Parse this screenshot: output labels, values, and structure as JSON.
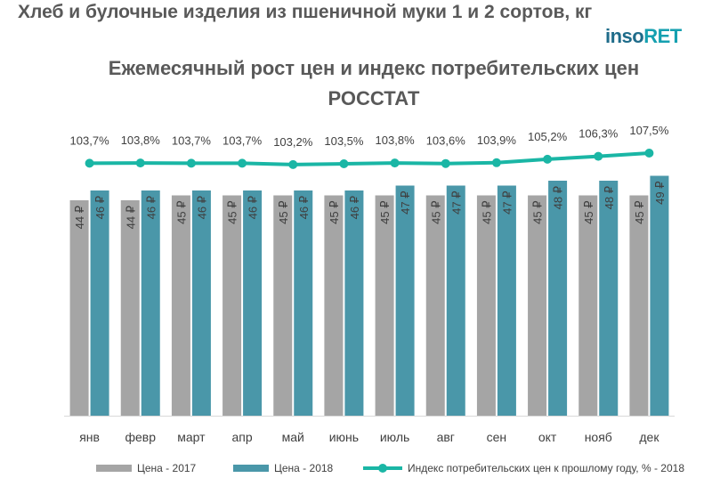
{
  "page": {
    "title": "Хлеб и булочные изделия из пшеничной муки 1 и 2 сортов, кг",
    "logo_part1": "inso",
    "logo_part2": "RET",
    "subtitle_line1": "Ежемесячный рост цен и индекс потребительских цен",
    "subtitle_line2": "РОССТАТ"
  },
  "colors": {
    "series_2017": "#a5a5a5",
    "series_2018": "#4a97a9",
    "index_line": "#1ab6a5",
    "text": "#595959"
  },
  "chart_data": {
    "type": "bar",
    "categories": [
      "янв",
      "февр",
      "март",
      "апр",
      "май",
      "июнь",
      "июль",
      "авг",
      "сен",
      "окт",
      "нояб",
      "дек"
    ],
    "series": [
      {
        "name": "Цена - 2017",
        "values": [
          44,
          44,
          45,
          45,
          45,
          45,
          45,
          45,
          45,
          45,
          45,
          45
        ],
        "labels": [
          "44 ₽",
          "44 ₽",
          "45 ₽",
          "45 ₽",
          "45 ₽",
          "45 ₽",
          "45 ₽",
          "45 ₽",
          "45 ₽",
          "45 ₽",
          "45 ₽",
          "45 ₽"
        ]
      },
      {
        "name": "Цена - 2018",
        "values": [
          46,
          46,
          46,
          46,
          46,
          46,
          47,
          47,
          47,
          48,
          48,
          49
        ],
        "labels": [
          "46 ₽",
          "46 ₽",
          "46 ₽",
          "46 ₽",
          "46 ₽",
          "46 ₽",
          "47 ₽",
          "47 ₽",
          "47 ₽",
          "48 ₽",
          "48 ₽",
          "49 ₽"
        ]
      }
    ],
    "line_series": {
      "name": "Индекс потребительских цен к прошлому году, % - 2018",
      "values": [
        103.7,
        103.8,
        103.7,
        103.7,
        103.2,
        103.5,
        103.8,
        103.6,
        103.9,
        105.2,
        106.3,
        107.5
      ],
      "labels": [
        "103,7%",
        "103,8%",
        "103,7%",
        "103,7%",
        "103,2%",
        "103,5%",
        "103,8%",
        "103,6%",
        "103,9%",
        "105,2%",
        "106,3%",
        "107,5%"
      ]
    },
    "legend": {
      "item_2017": "Цена  - 2017",
      "item_2018": "Цена  - 2018",
      "item_index": "Индекс потребительских цен к прошлому году, % - 2018"
    },
    "legend_position": "bottom",
    "grid": false
  }
}
